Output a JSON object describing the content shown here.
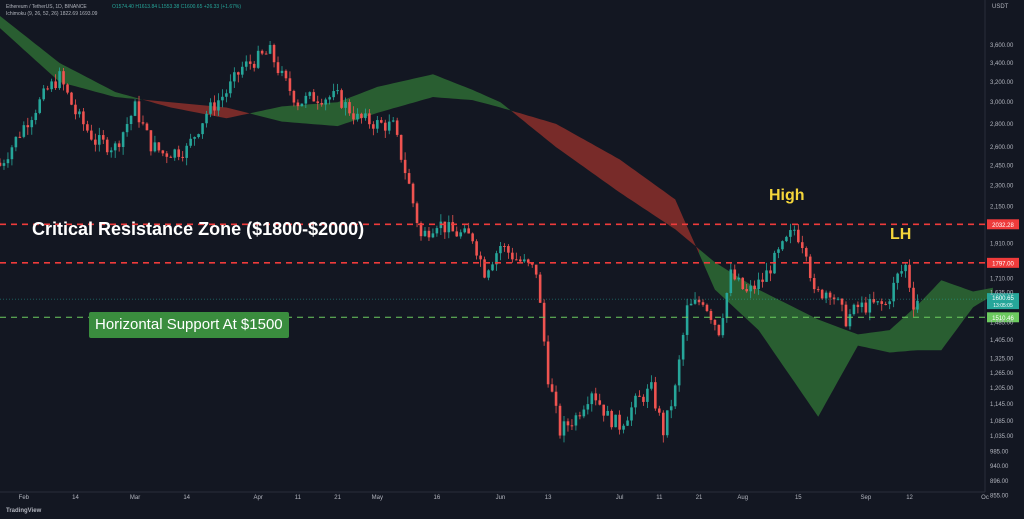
{
  "header": {
    "symbol_line": "Ethereum / TetherUS, 1D, BINANCE",
    "ohlc": "O1574.40 H1613.84 L1553.38 C1600.65 +26.33 (+1.67%)",
    "indicator": "Ichimoku (9, 26, 52, 26) 1822.69 1693.09"
  },
  "currency": "USDT",
  "branding": "TradingView",
  "annotations": {
    "resistance_zone": "Critical Resistance Zone ($1800-$2000)",
    "support": "Horizontal Support At $1500",
    "high": "High",
    "lower_high": "LH"
  },
  "colors": {
    "background": "#131722",
    "bull": "#26a69a",
    "bear": "#ef5350",
    "cloud_bear": "#8b2f2a",
    "cloud_bull": "#2e6b34",
    "resistance_line": "#ef3b3b",
    "support_line": "#6ccb5f",
    "label_green": "#3a8d3e",
    "annotation_yellow": "#f5d63b"
  },
  "chart_data": {
    "type": "candlestick",
    "y_scale": "log",
    "ylim": [
      865,
      3900
    ],
    "y_ticks": [
      "3,600.00",
      "3,400.00",
      "3,200.00",
      "3,000.00",
      "2,800.00",
      "2,600.00",
      "2,450.00",
      "2,300.00",
      "2,150.00",
      "2,032.28",
      "1,910.00",
      "1,797.00",
      "1,710.00",
      "1,635.00",
      "1,600.65",
      "13:05:05",
      "1,510.46",
      "1,485.00",
      "1,405.00",
      "1,325.00",
      "1,265.00",
      "1,205.00",
      "1,145.00",
      "1,085.00",
      "1,035.00",
      "985.00",
      "940.00",
      "896.00",
      "855.00"
    ],
    "x_ticks": [
      {
        "label": "Feb",
        "date": "2022-02-01"
      },
      {
        "label": "14",
        "date": "2022-02-14"
      },
      {
        "label": "Mar",
        "date": "2022-03-01"
      },
      {
        "label": "14",
        "date": "2022-03-14"
      },
      {
        "label": "Apr",
        "date": "2022-04-01"
      },
      {
        "label": "11",
        "date": "2022-04-11"
      },
      {
        "label": "21",
        "date": "2022-04-21"
      },
      {
        "label": "May",
        "date": "2022-05-01"
      },
      {
        "label": "16",
        "date": "2022-05-16"
      },
      {
        "label": "Jun",
        "date": "2022-06-01"
      },
      {
        "label": "13",
        "date": "2022-06-13"
      },
      {
        "label": "Jul",
        "date": "2022-07-01"
      },
      {
        "label": "11",
        "date": "2022-07-11"
      },
      {
        "label": "21",
        "date": "2022-07-21"
      },
      {
        "label": "Aug",
        "date": "2022-08-01"
      },
      {
        "label": "15",
        "date": "2022-08-15"
      },
      {
        "label": "Sep",
        "date": "2022-09-01"
      },
      {
        "label": "12",
        "date": "2022-09-12"
      },
      {
        "label": "Oc",
        "date": "2022-10-01"
      }
    ],
    "x_range": [
      "2022-01-26",
      "2022-10-01"
    ],
    "price_levels": [
      {
        "name": "resistance-high",
        "value": 2032.28,
        "label": "2032.28",
        "style": "dashed",
        "color": "#ef3b3b"
      },
      {
        "name": "resistance-low",
        "value": 1797.0,
        "label": "1797.00",
        "style": "dashed",
        "color": "#ef3b3b"
      },
      {
        "name": "support",
        "value": 1510.46,
        "label": "1510.46",
        "style": "dashed",
        "color": "#6ccb5f"
      }
    ],
    "current_price": {
      "value": 1600.65,
      "label": "1600.65",
      "countdown": "13:05:05"
    },
    "close_path": [
      [
        "2022-01-26",
        2450
      ],
      [
        "2022-02-01",
        2780
      ],
      [
        "2022-02-07",
        3120
      ],
      [
        "2022-02-10",
        3250
      ],
      [
        "2022-02-14",
        2900
      ],
      [
        "2022-02-19",
        2650
      ],
      [
        "2022-02-24",
        2600
      ],
      [
        "2022-03-01",
        2950
      ],
      [
        "2022-03-05",
        2620
      ],
      [
        "2022-03-08",
        2550
      ],
      [
        "2022-03-14",
        2580
      ],
      [
        "2022-03-19",
        2900
      ],
      [
        "2022-03-24",
        3100
      ],
      [
        "2022-03-28",
        3350
      ],
      [
        "2022-04-01",
        3450
      ],
      [
        "2022-04-04",
        3520
      ],
      [
        "2022-04-07",
        3250
      ],
      [
        "2022-04-11",
        3000
      ],
      [
        "2022-04-15",
        3050
      ],
      [
        "2022-04-21",
        3050
      ],
      [
        "2022-04-26",
        2850
      ],
      [
        "2022-05-01",
        2800
      ],
      [
        "2022-05-05",
        2780
      ],
      [
        "2022-05-09",
        2300
      ],
      [
        "2022-05-12",
        1950
      ],
      [
        "2022-05-16",
        2050
      ],
      [
        "2022-05-20",
        1980
      ],
      [
        "2022-05-25",
        1950
      ],
      [
        "2022-05-28",
        1750
      ],
      [
        "2022-06-01",
        1900
      ],
      [
        "2022-06-05",
        1820
      ],
      [
        "2022-06-10",
        1750
      ],
      [
        "2022-06-13",
        1250
      ],
      [
        "2022-06-16",
        1050
      ],
      [
        "2022-06-20",
        1100
      ],
      [
        "2022-06-24",
        1200
      ],
      [
        "2022-06-28",
        1100
      ],
      [
        "2022-07-01",
        1070
      ],
      [
        "2022-07-05",
        1150
      ],
      [
        "2022-07-09",
        1200
      ],
      [
        "2022-07-12",
        1050
      ],
      [
        "2022-07-15",
        1200
      ],
      [
        "2022-07-18",
        1550
      ],
      [
        "2022-07-22",
        1600
      ],
      [
        "2022-07-26",
        1450
      ],
      [
        "2022-07-29",
        1730
      ],
      [
        "2022-08-02",
        1630
      ],
      [
        "2022-08-06",
        1700
      ],
      [
        "2022-08-10",
        1850
      ],
      [
        "2022-08-14",
        2000
      ],
      [
        "2022-08-17",
        1880
      ],
      [
        "2022-08-19",
        1620
      ],
      [
        "2022-08-23",
        1650
      ],
      [
        "2022-08-27",
        1500
      ],
      [
        "2022-08-30",
        1560
      ],
      [
        "2022-09-03",
        1570
      ],
      [
        "2022-09-06",
        1570
      ],
      [
        "2022-09-09",
        1720
      ],
      [
        "2022-09-11",
        1780
      ],
      [
        "2022-09-13",
        1580
      ],
      [
        "2022-09-14",
        1600
      ]
    ],
    "cloud_span_a": [
      [
        "2022-01-26",
        3950
      ],
      [
        "2022-02-10",
        3400
      ],
      [
        "2022-02-24",
        3100
      ],
      [
        "2022-03-10",
        2950
      ],
      [
        "2022-03-24",
        2850
      ],
      [
        "2022-04-07",
        2960
      ],
      [
        "2022-04-21",
        3000
      ],
      [
        "2022-05-01",
        3150
      ],
      [
        "2022-05-15",
        3280
      ],
      [
        "2022-05-25",
        3120
      ],
      [
        "2022-06-01",
        3000
      ],
      [
        "2022-06-15",
        2600
      ],
      [
        "2022-07-01",
        2250
      ],
      [
        "2022-07-15",
        2000
      ],
      [
        "2022-07-25",
        1800
      ],
      [
        "2022-08-05",
        1650
      ],
      [
        "2022-08-20",
        1500
      ],
      [
        "2022-08-30",
        1430
      ],
      [
        "2022-09-07",
        1450
      ],
      [
        "2022-09-14",
        1570
      ],
      [
        "2022-09-20",
        1700
      ],
      [
        "2022-09-28",
        1640
      ],
      [
        "2022-10-03",
        1660
      ]
    ],
    "cloud_span_b": [
      [
        "2022-01-26",
        3800
      ],
      [
        "2022-02-10",
        3200
      ],
      [
        "2022-02-24",
        3050
      ],
      [
        "2022-03-10",
        3000
      ],
      [
        "2022-03-24",
        2950
      ],
      [
        "2022-04-07",
        2820
      ],
      [
        "2022-04-21",
        2780
      ],
      [
        "2022-05-01",
        2900
      ],
      [
        "2022-05-15",
        3050
      ],
      [
        "2022-05-25",
        3020
      ],
      [
        "2022-06-01",
        2950
      ],
      [
        "2022-06-15",
        2800
      ],
      [
        "2022-07-01",
        2500
      ],
      [
        "2022-07-15",
        2200
      ],
      [
        "2022-07-25",
        1650
      ],
      [
        "2022-08-05",
        1450
      ],
      [
        "2022-08-20",
        1100
      ],
      [
        "2022-08-30",
        1380
      ],
      [
        "2022-09-07",
        1350
      ],
      [
        "2022-09-14",
        1360
      ],
      [
        "2022-09-20",
        1360
      ],
      [
        "2022-09-28",
        1560
      ],
      [
        "2022-10-03",
        1620
      ]
    ]
  }
}
